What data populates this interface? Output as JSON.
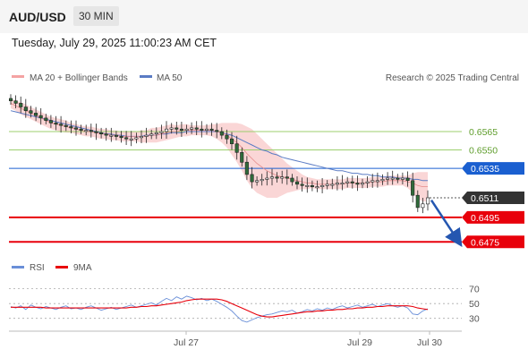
{
  "header": {
    "pair": "AUD/USD",
    "timeframe": "30 MIN"
  },
  "datetime": "Tuesday, July 29, 2025 11:00:23 AM CET",
  "legend": {
    "ma20": "MA 20 + Bollinger Bands",
    "ma50": "MA 50",
    "credit": "Research © 2025 Trading Central",
    "rsi": "RSI",
    "rsi_ma": "9MA"
  },
  "colors": {
    "bollinger": "#f4a3a3",
    "ma50": "#5a7bc4",
    "green_level": "#9ccf6e",
    "blue_level": "#1a5fd0",
    "red_level": "#e8000b",
    "current": "#333333",
    "candle": "#2f6b3a",
    "rsi": "#6a8fd8",
    "rsi_ma": "#e8000b"
  },
  "chart_data": [
    {
      "type": "candlestick",
      "ylim": [
        0.6465,
        0.66
      ],
      "x_ticks": [
        "Jul 27",
        "Jul 29",
        "Jul 30"
      ],
      "levels": [
        {
          "label": "0.6565",
          "value": 0.6565,
          "kind": "green"
        },
        {
          "label": "0.6550",
          "value": 0.655,
          "kind": "green"
        },
        {
          "label": "0.6535",
          "value": 0.6535,
          "kind": "blue"
        },
        {
          "label": "0.6511",
          "value": 0.6511,
          "kind": "current"
        },
        {
          "label": "0.6495",
          "value": 0.6495,
          "kind": "red"
        },
        {
          "label": "0.6475",
          "value": 0.6475,
          "kind": "red"
        }
      ],
      "close": [
        0.659,
        0.6588,
        0.6585,
        0.6582,
        0.658,
        0.6578,
        0.6576,
        0.6574,
        0.6572,
        0.6571,
        0.657,
        0.6569,
        0.6568,
        0.6567,
        0.6566,
        0.6566,
        0.6565,
        0.6564,
        0.6563,
        0.6562,
        0.6562,
        0.6561,
        0.656,
        0.6559,
        0.6559,
        0.656,
        0.6561,
        0.6562,
        0.6563,
        0.6564,
        0.6565,
        0.6567,
        0.6568,
        0.6567,
        0.6566,
        0.6567,
        0.6568,
        0.6567,
        0.6566,
        0.6567,
        0.6566,
        0.6565,
        0.6562,
        0.6559,
        0.6555,
        0.6548,
        0.654,
        0.653,
        0.6524,
        0.6525,
        0.6526,
        0.6527,
        0.6528,
        0.6527,
        0.6528,
        0.6527,
        0.6524,
        0.6522,
        0.6521,
        0.6521,
        0.652,
        0.652,
        0.6521,
        0.6522,
        0.6522,
        0.6523,
        0.6523,
        0.6524,
        0.6523,
        0.6522,
        0.6523,
        0.6524,
        0.6525,
        0.6525,
        0.6526,
        0.6527,
        0.6527,
        0.6526,
        0.6527,
        0.6525,
        0.6513,
        0.6503,
        0.6506,
        0.6511
      ],
      "ma50": [
        0.6582,
        0.6581,
        0.658,
        0.6579,
        0.6578,
        0.6577,
        0.6576,
        0.6575,
        0.6574,
        0.6573,
        0.6572,
        0.6571,
        0.657,
        0.6569,
        0.6568,
        0.6567,
        0.6566,
        0.6565,
        0.6564,
        0.6563,
        0.6563,
        0.6562,
        0.6562,
        0.6561,
        0.6561,
        0.6561,
        0.6561,
        0.6562,
        0.6562,
        0.6562,
        0.6563,
        0.6563,
        0.6564,
        0.6564,
        0.6564,
        0.6565,
        0.6565,
        0.6565,
        0.6565,
        0.6565,
        0.6565,
        0.6565,
        0.6564,
        0.6563,
        0.6562,
        0.656,
        0.6558,
        0.6556,
        0.6554,
        0.6552,
        0.655,
        0.6549,
        0.6547,
        0.6546,
        0.6544,
        0.6543,
        0.6542,
        0.6541,
        0.654,
        0.6539,
        0.6538,
        0.6537,
        0.6536,
        0.6535,
        0.6534,
        0.6533,
        0.6533,
        0.6532,
        0.6531,
        0.6531,
        0.653,
        0.653,
        0.6529,
        0.6529,
        0.6528,
        0.6528,
        0.6528,
        0.6527,
        0.6527,
        0.6527,
        0.6526,
        0.6526,
        0.6525,
        0.6525
      ],
      "ma20": [
        0.6588,
        0.6586,
        0.6584,
        0.6582,
        0.658,
        0.6578,
        0.6576,
        0.6574,
        0.6572,
        0.6571,
        0.657,
        0.6569,
        0.6568,
        0.6567,
        0.6566,
        0.6565,
        0.6565,
        0.6564,
        0.6563,
        0.6563,
        0.6562,
        0.6562,
        0.6561,
        0.6561,
        0.6561,
        0.6561,
        0.6561,
        0.6561,
        0.6562,
        0.6562,
        0.6563,
        0.6564,
        0.6565,
        0.6565,
        0.6566,
        0.6566,
        0.6566,
        0.6566,
        0.6566,
        0.6566,
        0.6566,
        0.6565,
        0.6564,
        0.6562,
        0.6559,
        0.6556,
        0.6552,
        0.6547,
        0.6543,
        0.6539,
        0.6536,
        0.6533,
        0.6531,
        0.6529,
        0.6528,
        0.6527,
        0.6526,
        0.6525,
        0.6524,
        0.6523,
        0.6523,
        0.6522,
        0.6522,
        0.6522,
        0.6522,
        0.6522,
        0.6522,
        0.6523,
        0.6523,
        0.6523,
        0.6523,
        0.6523,
        0.6524,
        0.6524,
        0.6524,
        0.6525,
        0.6525,
        0.6525,
        0.6525,
        0.6524,
        0.6523,
        0.6521,
        0.652,
        0.652
      ],
      "band_width": [
        0.0004,
        0.0004,
        0.0005,
        0.0005,
        0.0005,
        0.0005,
        0.0005,
        0.0005,
        0.0005,
        0.0005,
        0.0005,
        0.0005,
        0.0004,
        0.0004,
        0.0004,
        0.0004,
        0.0004,
        0.0004,
        0.0004,
        0.0004,
        0.0004,
        0.0004,
        0.0004,
        0.0004,
        0.0004,
        0.0004,
        0.0005,
        0.0005,
        0.0006,
        0.0006,
        0.0006,
        0.0006,
        0.0006,
        0.0005,
        0.0005,
        0.0005,
        0.0004,
        0.0004,
        0.0004,
        0.0004,
        0.0005,
        0.0006,
        0.0008,
        0.001,
        0.0013,
        0.0016,
        0.0019,
        0.0022,
        0.0024,
        0.0024,
        0.0023,
        0.0022,
        0.002,
        0.0018,
        0.0015,
        0.0012,
        0.001,
        0.0008,
        0.0006,
        0.0005,
        0.0004,
        0.0004,
        0.0004,
        0.0004,
        0.0004,
        0.0004,
        0.0004,
        0.0004,
        0.0004,
        0.0004,
        0.0004,
        0.0004,
        0.0004,
        0.0004,
        0.0004,
        0.0004,
        0.0004,
        0.0004,
        0.0004,
        0.0005,
        0.0008,
        0.0011,
        0.0012,
        0.0012
      ],
      "forecast": {
        "from": 0.6509,
        "to": 0.6477
      }
    },
    {
      "type": "line",
      "ylim": [
        20,
        78
      ],
      "y_ticks": [
        70,
        50,
        30
      ],
      "series": [
        {
          "name": "RSI",
          "values": [
            46,
            44,
            47,
            42,
            48,
            45,
            43,
            46,
            44,
            42,
            45,
            47,
            43,
            44,
            42,
            45,
            47,
            44,
            41,
            43,
            45,
            42,
            44,
            46,
            48,
            45,
            47,
            49,
            51,
            48,
            53,
            57,
            54,
            59,
            56,
            60,
            58,
            55,
            57,
            54,
            56,
            53,
            49,
            45,
            40,
            33,
            27,
            25,
            28,
            31,
            33,
            35,
            36,
            38,
            40,
            39,
            41,
            37,
            39,
            42,
            40,
            43,
            41,
            44,
            42,
            45,
            47,
            44,
            46,
            48,
            45,
            47,
            49,
            46,
            48,
            50,
            47,
            45,
            47,
            44,
            36,
            35,
            40,
            43
          ]
        },
        {
          "name": "9MA",
          "values": [
            45,
            45,
            45,
            45,
            45,
            45,
            45,
            44,
            44,
            44,
            44,
            44,
            44,
            44,
            44,
            44,
            44,
            44,
            44,
            44,
            44,
            44,
            44,
            44,
            45,
            45,
            46,
            46,
            47,
            47,
            48,
            49,
            50,
            51,
            52,
            54,
            55,
            56,
            56,
            56,
            56,
            56,
            55,
            53,
            50,
            47,
            44,
            41,
            38,
            35,
            33,
            32,
            32,
            33,
            34,
            35,
            36,
            37,
            38,
            39,
            39,
            40,
            40,
            41,
            41,
            42,
            42,
            43,
            43,
            44,
            44,
            45,
            45,
            46,
            46,
            47,
            47,
            47,
            47,
            47,
            46,
            44,
            43,
            42
          ]
        }
      ]
    }
  ]
}
